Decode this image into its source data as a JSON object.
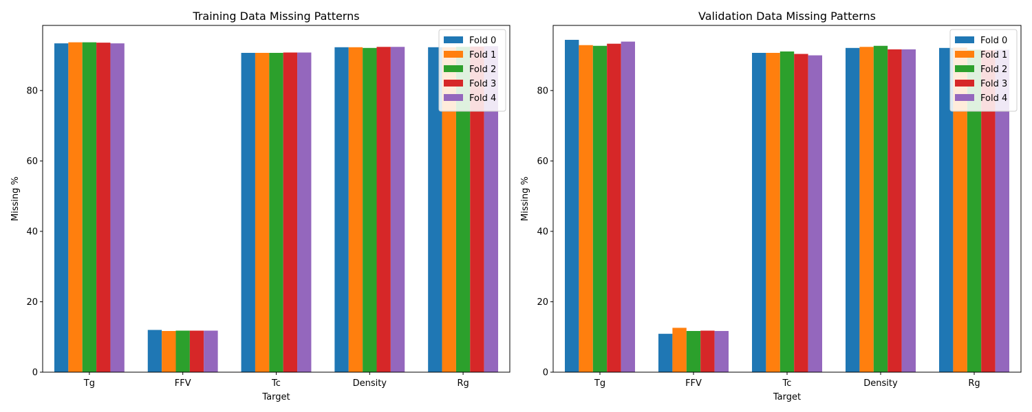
{
  "chart_data": [
    {
      "type": "bar",
      "title": "Training Data Missing Patterns",
      "xlabel": "Target",
      "ylabel": "Missing %",
      "categories": [
        "Tg",
        "FFV",
        "Tc",
        "Density",
        "Rg"
      ],
      "ylim": [
        0,
        98.5
      ],
      "yticks": [
        0,
        20,
        40,
        60,
        80
      ],
      "legend": "top-right",
      "grid": false,
      "series": [
        {
          "name": "Fold 0",
          "color": "#1f77b4",
          "values": [
            93.4,
            12.0,
            90.7,
            92.3,
            92.3
          ]
        },
        {
          "name": "Fold 1",
          "color": "#ff7f0e",
          "values": [
            93.7,
            11.7,
            90.7,
            92.3,
            92.3
          ]
        },
        {
          "name": "Fold 2",
          "color": "#2ca02c",
          "values": [
            93.7,
            11.8,
            90.7,
            92.1,
            92.4
          ]
        },
        {
          "name": "Fold 3",
          "color": "#d62728",
          "values": [
            93.6,
            11.8,
            90.8,
            92.4,
            92.5
          ]
        },
        {
          "name": "Fold 4",
          "color": "#9467bd",
          "values": [
            93.4,
            11.8,
            90.8,
            92.4,
            92.6
          ]
        }
      ]
    },
    {
      "type": "bar",
      "title": "Validation Data Missing Patterns",
      "xlabel": "Target",
      "ylabel": "Missing %",
      "categories": [
        "Tg",
        "FFV",
        "Tc",
        "Density",
        "Rg"
      ],
      "ylim": [
        0,
        98.5
      ],
      "yticks": [
        0,
        20,
        40,
        60,
        80
      ],
      "legend": "top-right",
      "grid": false,
      "series": [
        {
          "name": "Fold 0",
          "color": "#1f77b4",
          "values": [
            94.4,
            10.9,
            90.7,
            92.1,
            92.1
          ]
        },
        {
          "name": "Fold 1",
          "color": "#ff7f0e",
          "values": [
            92.9,
            12.6,
            90.7,
            92.4,
            92.2
          ]
        },
        {
          "name": "Fold 2",
          "color": "#2ca02c",
          "values": [
            92.7,
            11.7,
            91.1,
            92.7,
            91.6
          ]
        },
        {
          "name": "Fold 3",
          "color": "#d62728",
          "values": [
            93.3,
            11.8,
            90.4,
            91.7,
            91.5
          ]
        },
        {
          "name": "Fold 4",
          "color": "#9467bd",
          "values": [
            93.9,
            11.7,
            90.0,
            91.7,
            91.6
          ]
        }
      ]
    }
  ]
}
